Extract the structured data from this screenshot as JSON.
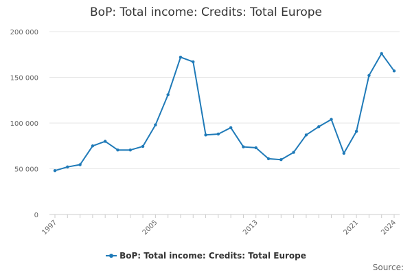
{
  "chart_data": {
    "type": "line",
    "title": "BoP: Total income: Credits: Total Europe",
    "xlabel": "",
    "ylabel": "",
    "x": [
      1997,
      1998,
      1999,
      2000,
      2001,
      2002,
      2003,
      2004,
      2005,
      2006,
      2007,
      2008,
      2009,
      2010,
      2011,
      2012,
      2013,
      2014,
      2015,
      2016,
      2017,
      2018,
      2019,
      2020,
      2021,
      2022,
      2023,
      2024
    ],
    "x_tick_labels": [
      "1997",
      "2005",
      "2013",
      "2021",
      "2024"
    ],
    "x_tick_values": [
      1997,
      2005,
      2013,
      2021,
      2024
    ],
    "ylim": [
      0,
      200000
    ],
    "y_tick_values": [
      0,
      50000,
      100000,
      150000,
      200000
    ],
    "y_tick_labels": [
      "0",
      "50 000",
      "100 000",
      "150 000",
      "200 000"
    ],
    "grid": true,
    "legend_position": "bottom",
    "series": [
      {
        "name": "BoP: Total income: Credits: Total Europe",
        "color": "#1f7ab8",
        "values": [
          48000,
          52000,
          54500,
          75000,
          80000,
          70500,
          70500,
          74500,
          98000,
          131000,
          172000,
          167000,
          87000,
          88000,
          95000,
          74000,
          73000,
          61000,
          60000,
          68000,
          87000,
          96000,
          104000,
          67000,
          91000,
          152000,
          176000,
          157000
        ]
      }
    ]
  },
  "source_label": "Source:"
}
